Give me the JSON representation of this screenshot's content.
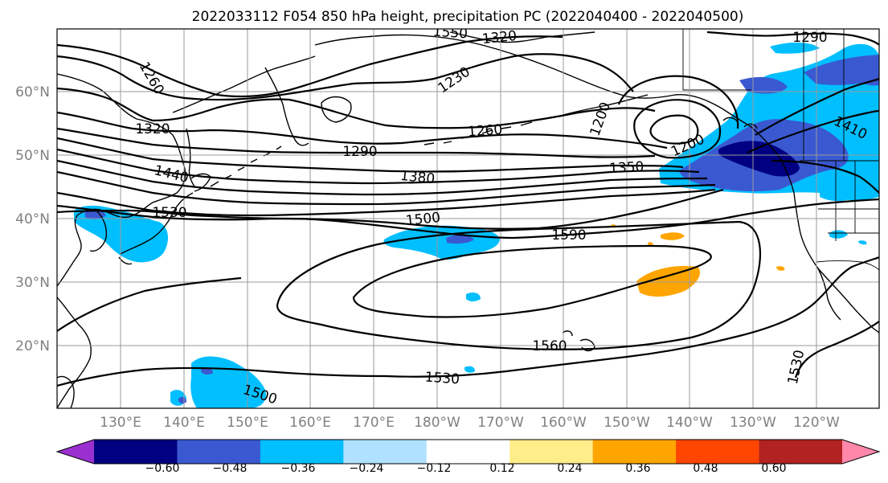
{
  "title": "2022033112 F054 850 hPa height, precipitation PC (2022040400 - 2022040500)",
  "lat_labels": [
    "60°N",
    "50°N",
    "40°N",
    "30°N",
    "20°N"
  ],
  "lon_labels": [
    "130°E",
    "140°E",
    "150°E",
    "160°E",
    "170°E",
    "180°W",
    "170°W",
    "160°W",
    "150°W",
    "140°W",
    "130°W",
    "120°W"
  ],
  "contour_labels": [
    "1550",
    "1320",
    "1290",
    "1260",
    "1230",
    "1260",
    "1200",
    "1320",
    "1290",
    "1200",
    "1410",
    "1440",
    "1380",
    "1350",
    "1530",
    "1500",
    "1590",
    "1560",
    "1530",
    "1500",
    "1530"
  ],
  "colorbar": {
    "colors": [
      "#9b30d0",
      "#000080",
      "#3a59d1",
      "#00bfff",
      "#b0e2ff",
      "#ffffff",
      "#ffed8a",
      "#ffa500",
      "#ff4500",
      "#b22222",
      "#ff88aa"
    ],
    "tick_labels": [
      "−0.60",
      "−0.48",
      "−0.36",
      "−0.24",
      "−0.12",
      "0.12",
      "0.24",
      "0.36",
      "0.48",
      "0.60"
    ]
  }
}
